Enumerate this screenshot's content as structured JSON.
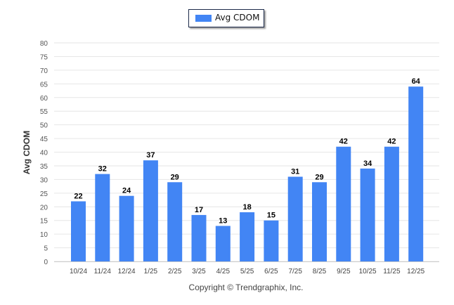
{
  "chart_data": {
    "type": "bar",
    "title": "",
    "legend": {
      "label": "Avg CDOM",
      "position": "top-center"
    },
    "ylabel": "Avg CDOM",
    "xlabel": "",
    "ylim": [
      0,
      80
    ],
    "yticks": [
      0,
      5,
      10,
      15,
      20,
      25,
      30,
      35,
      40,
      45,
      50,
      55,
      60,
      65,
      70,
      75,
      80
    ],
    "categories": [
      "10/24",
      "11/24",
      "12/24",
      "1/25",
      "2/25",
      "3/25",
      "4/25",
      "5/25",
      "6/25",
      "7/25",
      "8/25",
      "9/25",
      "10/25",
      "11/25",
      "12/25"
    ],
    "values": [
      22,
      32,
      24,
      37,
      29,
      17,
      13,
      18,
      15,
      31,
      29,
      42,
      34,
      42,
      64
    ],
    "grid": true,
    "bar_color": "#4285f4"
  },
  "footer": "Copyright © Trendgraphix, Inc."
}
